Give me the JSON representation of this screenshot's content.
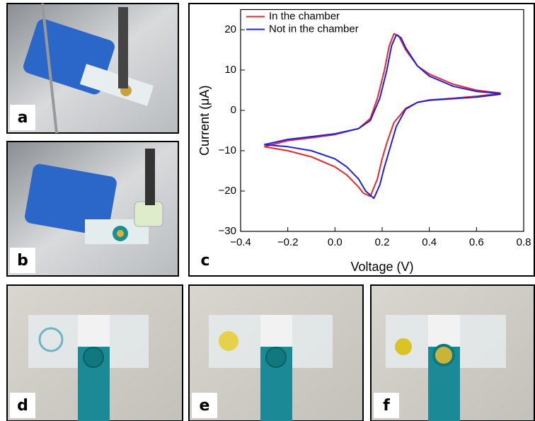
{
  "panel_labels": [
    "a",
    "b",
    "c",
    "d",
    "e",
    "f"
  ],
  "chart_data": {
    "type": "line",
    "xlabel": "Voltage (V)",
    "ylabel": "Current (μA)",
    "xlim": [
      -0.4,
      0.8
    ],
    "xticks": [
      {
        "value": -0.4,
        "label": "−0.4"
      },
      {
        "value": -0.2,
        "label": "−0.2"
      },
      {
        "value": 0,
        "label": "0.0"
      },
      0.2,
      0.4,
      0.6,
      0.8
    ],
    "ylim": [
      -30,
      25
    ],
    "yticks": [
      {
        "value": -30,
        "label": "−30"
      },
      {
        "value": -20,
        "label": "−20"
      },
      {
        "value": -10,
        "label": "−10"
      },
      0,
      10,
      20
    ],
    "legend": "upper-left",
    "series": [
      {
        "name": "In the chamber",
        "color": "#e8262b",
        "x": [
          -0.3,
          -0.2,
          -0.1,
          0.0,
          0.1,
          0.15,
          0.18,
          0.21,
          0.23,
          0.25,
          0.27,
          0.3,
          0.35,
          0.4,
          0.5,
          0.6,
          0.7,
          0.7,
          0.6,
          0.5,
          0.4,
          0.35,
          0.3,
          0.25,
          0.22,
          0.2,
          0.18,
          0.15,
          0.12,
          0.1,
          0.05,
          0.0,
          -0.1,
          -0.2,
          -0.3
        ],
        "values": [
          -9,
          -7.5,
          -6.8,
          -6,
          -4.5,
          -2,
          3,
          10,
          16,
          19,
          18.5,
          15,
          11,
          9,
          6.5,
          5,
          4.3,
          4.2,
          3.5,
          3,
          2.6,
          2,
          0.5,
          -3,
          -8,
          -12,
          -17,
          -21.3,
          -20.5,
          -19,
          -16,
          -14,
          -11.5,
          -10,
          -9
        ]
      },
      {
        "name": "Not in the chamber",
        "color": "#1f1fe0",
        "x": [
          -0.3,
          -0.2,
          -0.1,
          0.0,
          0.1,
          0.15,
          0.19,
          0.22,
          0.24,
          0.26,
          0.28,
          0.3,
          0.35,
          0.4,
          0.5,
          0.6,
          0.7,
          0.7,
          0.6,
          0.5,
          0.4,
          0.35,
          0.3,
          0.26,
          0.23,
          0.21,
          0.19,
          0.165,
          0.13,
          0.1,
          0.05,
          0.0,
          -0.1,
          -0.2,
          -0.3
        ],
        "values": [
          -8.5,
          -7.2,
          -6.5,
          -5.8,
          -4.5,
          -2.5,
          3,
          10,
          16,
          18.7,
          18,
          15.5,
          11,
          8.5,
          6,
          4.7,
          4.2,
          4,
          3.3,
          2.9,
          2.5,
          2,
          0.3,
          -4,
          -10,
          -14,
          -18.5,
          -21.8,
          -20,
          -17,
          -14,
          -12,
          -10,
          -9,
          -8.5
        ]
      }
    ]
  }
}
